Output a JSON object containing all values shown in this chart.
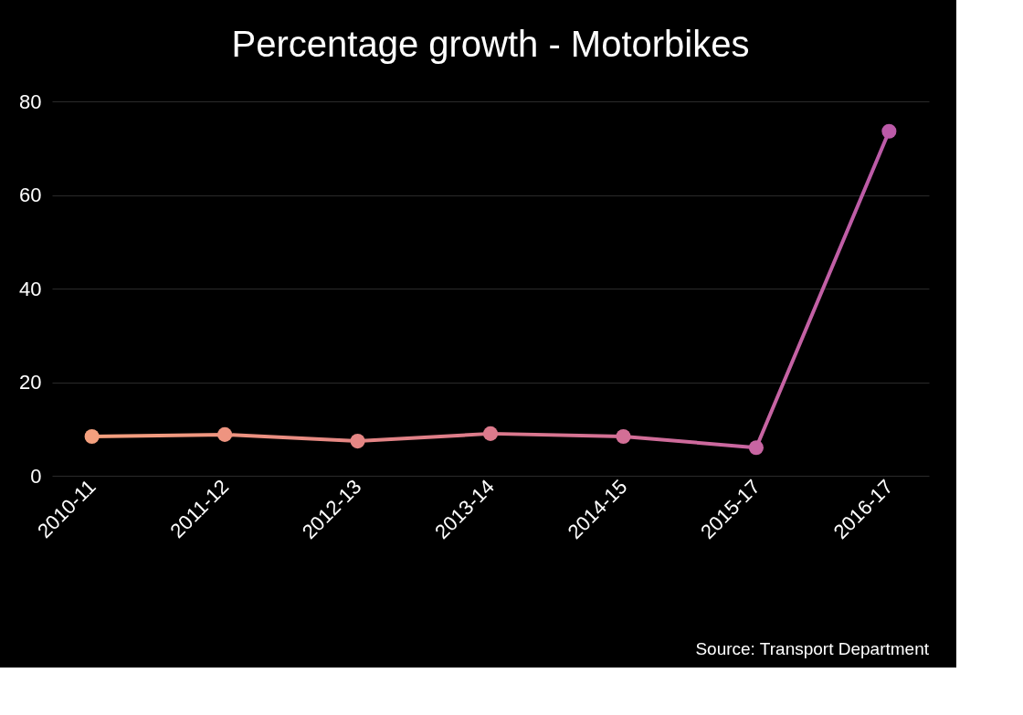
{
  "chart_data": {
    "type": "line",
    "title": "Percentage growth - Motorbikes",
    "categories": [
      "2010-11",
      "2011-12",
      "2012-13",
      "2013-14",
      "2014-15",
      "2015-17",
      "2016-17"
    ],
    "series": [
      {
        "values": [
          8.4,
          8.8,
          7.4,
          9.0,
          8.4,
          6.0,
          73.6
        ],
        "colors": [
          "#f4a07e",
          "#ee9480",
          "#e58684",
          "#dc7a8c",
          "#d36f96",
          "#c865a2",
          "#bb5aa8"
        ]
      }
    ],
    "ylim": [
      0,
      80
    ],
    "yticks": [
      0,
      20,
      40,
      60,
      80
    ],
    "grid": "y",
    "marker": "circle",
    "line_style": "solid",
    "annotations": [
      "Source: Transport Department"
    ]
  }
}
